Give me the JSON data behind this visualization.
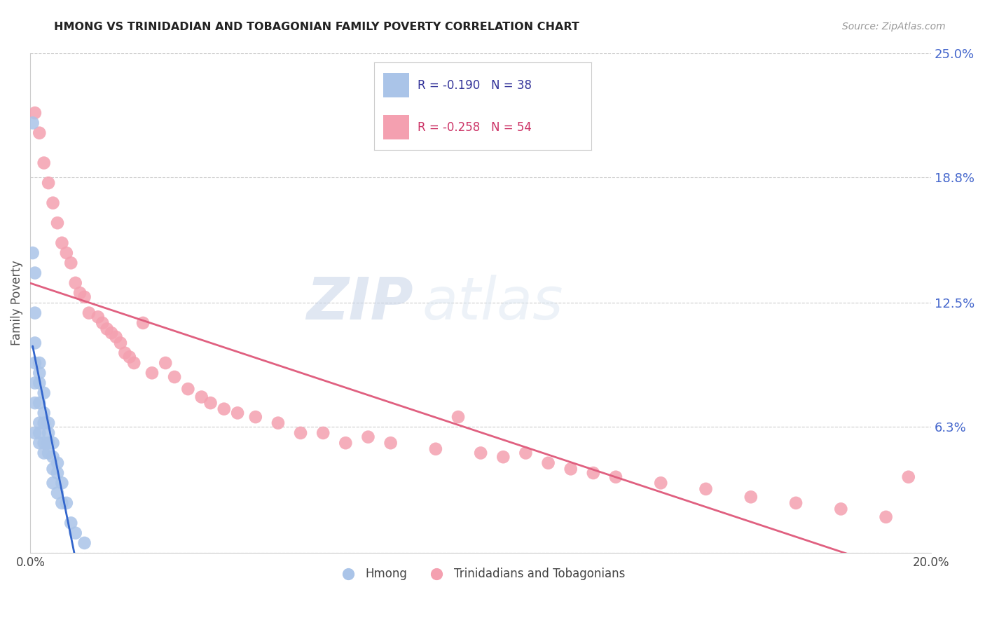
{
  "title": "HMONG VS TRINIDADIAN AND TOBAGONIAN FAMILY POVERTY CORRELATION CHART",
  "source": "Source: ZipAtlas.com",
  "ylabel": "Family Poverty",
  "watermark_zip": "ZIP",
  "watermark_atlas": "atlas",
  "xlim": [
    0.0,
    0.2
  ],
  "ylim": [
    0.0,
    0.25
  ],
  "ytick_values": [
    0.0,
    0.063,
    0.125,
    0.188,
    0.25
  ],
  "ytick_labels": [
    "",
    "6.3%",
    "12.5%",
    "18.8%",
    "25.0%"
  ],
  "grid_color": "#cccccc",
  "hmong_color": "#aac4e8",
  "trinidadian_color": "#f4a0b0",
  "hmong_line_color": "#3366cc",
  "trinidadian_line_color": "#e06080",
  "hmong_R": -0.19,
  "hmong_N": 38,
  "trinidadian_R": -0.258,
  "trinidadian_N": 54,
  "hmong_x": [
    0.0005,
    0.0005,
    0.001,
    0.001,
    0.001,
    0.001,
    0.001,
    0.001,
    0.001,
    0.002,
    0.002,
    0.002,
    0.002,
    0.002,
    0.002,
    0.002,
    0.003,
    0.003,
    0.003,
    0.003,
    0.003,
    0.004,
    0.004,
    0.004,
    0.004,
    0.005,
    0.005,
    0.005,
    0.005,
    0.006,
    0.006,
    0.006,
    0.007,
    0.007,
    0.008,
    0.009,
    0.01,
    0.012
  ],
  "hmong_y": [
    0.215,
    0.15,
    0.14,
    0.12,
    0.105,
    0.095,
    0.085,
    0.075,
    0.06,
    0.095,
    0.09,
    0.085,
    0.075,
    0.065,
    0.06,
    0.055,
    0.08,
    0.07,
    0.065,
    0.055,
    0.05,
    0.065,
    0.06,
    0.055,
    0.05,
    0.055,
    0.048,
    0.042,
    0.035,
    0.045,
    0.04,
    0.03,
    0.035,
    0.025,
    0.025,
    0.015,
    0.01,
    0.005
  ],
  "trinidadian_x": [
    0.001,
    0.002,
    0.003,
    0.004,
    0.005,
    0.006,
    0.007,
    0.008,
    0.009,
    0.01,
    0.011,
    0.012,
    0.013,
    0.015,
    0.016,
    0.017,
    0.018,
    0.019,
    0.02,
    0.021,
    0.022,
    0.023,
    0.025,
    0.027,
    0.03,
    0.032,
    0.035,
    0.038,
    0.04,
    0.043,
    0.046,
    0.05,
    0.055,
    0.06,
    0.065,
    0.07,
    0.075,
    0.08,
    0.09,
    0.095,
    0.1,
    0.105,
    0.11,
    0.115,
    0.12,
    0.125,
    0.13,
    0.14,
    0.15,
    0.16,
    0.17,
    0.18,
    0.19,
    0.195
  ],
  "trinidadian_y": [
    0.22,
    0.21,
    0.195,
    0.185,
    0.175,
    0.165,
    0.155,
    0.15,
    0.145,
    0.135,
    0.13,
    0.128,
    0.12,
    0.118,
    0.115,
    0.112,
    0.11,
    0.108,
    0.105,
    0.1,
    0.098,
    0.095,
    0.115,
    0.09,
    0.095,
    0.088,
    0.082,
    0.078,
    0.075,
    0.072,
    0.07,
    0.068,
    0.065,
    0.06,
    0.06,
    0.055,
    0.058,
    0.055,
    0.052,
    0.068,
    0.05,
    0.048,
    0.05,
    0.045,
    0.042,
    0.04,
    0.038,
    0.035,
    0.032,
    0.028,
    0.025,
    0.022,
    0.018,
    0.038
  ],
  "background_color": "#ffffff"
}
